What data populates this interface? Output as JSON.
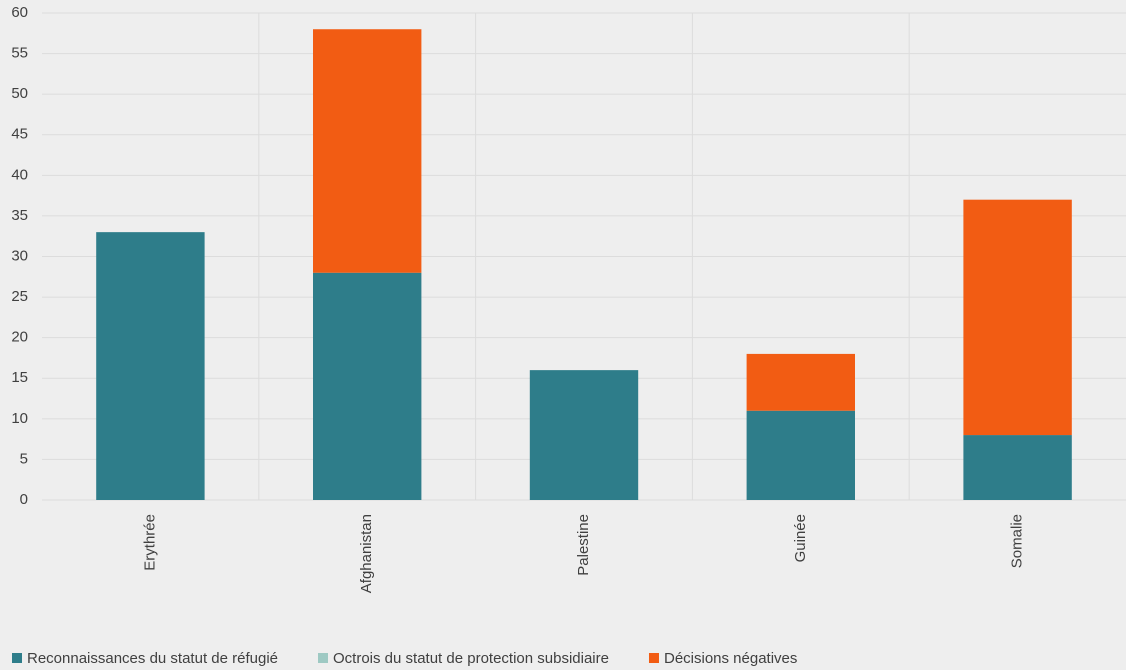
{
  "chart_data": {
    "type": "bar",
    "stacked": true,
    "categories": [
      "Erythrée",
      "Afghanistan",
      "Palestine",
      "Guinée",
      "Somalie"
    ],
    "series": [
      {
        "name": "Reconnaissances du statut de réfugié",
        "color": "#2e7d8a",
        "values": [
          33,
          28,
          16,
          11,
          8
        ]
      },
      {
        "name": "Octrois du statut de protection subsidiaire",
        "color": "#9ec9c3",
        "values": [
          0,
          0,
          0,
          0,
          0
        ]
      },
      {
        "name": "Décisions négatives",
        "color": "#f25c13",
        "values": [
          0,
          30,
          0,
          7,
          29
        ]
      }
    ],
    "ylim": [
      0,
      60
    ],
    "yticks": [
      0,
      5,
      10,
      15,
      20,
      25,
      30,
      35,
      40,
      45,
      50,
      55,
      60
    ],
    "grid": true,
    "legend": "bottom"
  }
}
